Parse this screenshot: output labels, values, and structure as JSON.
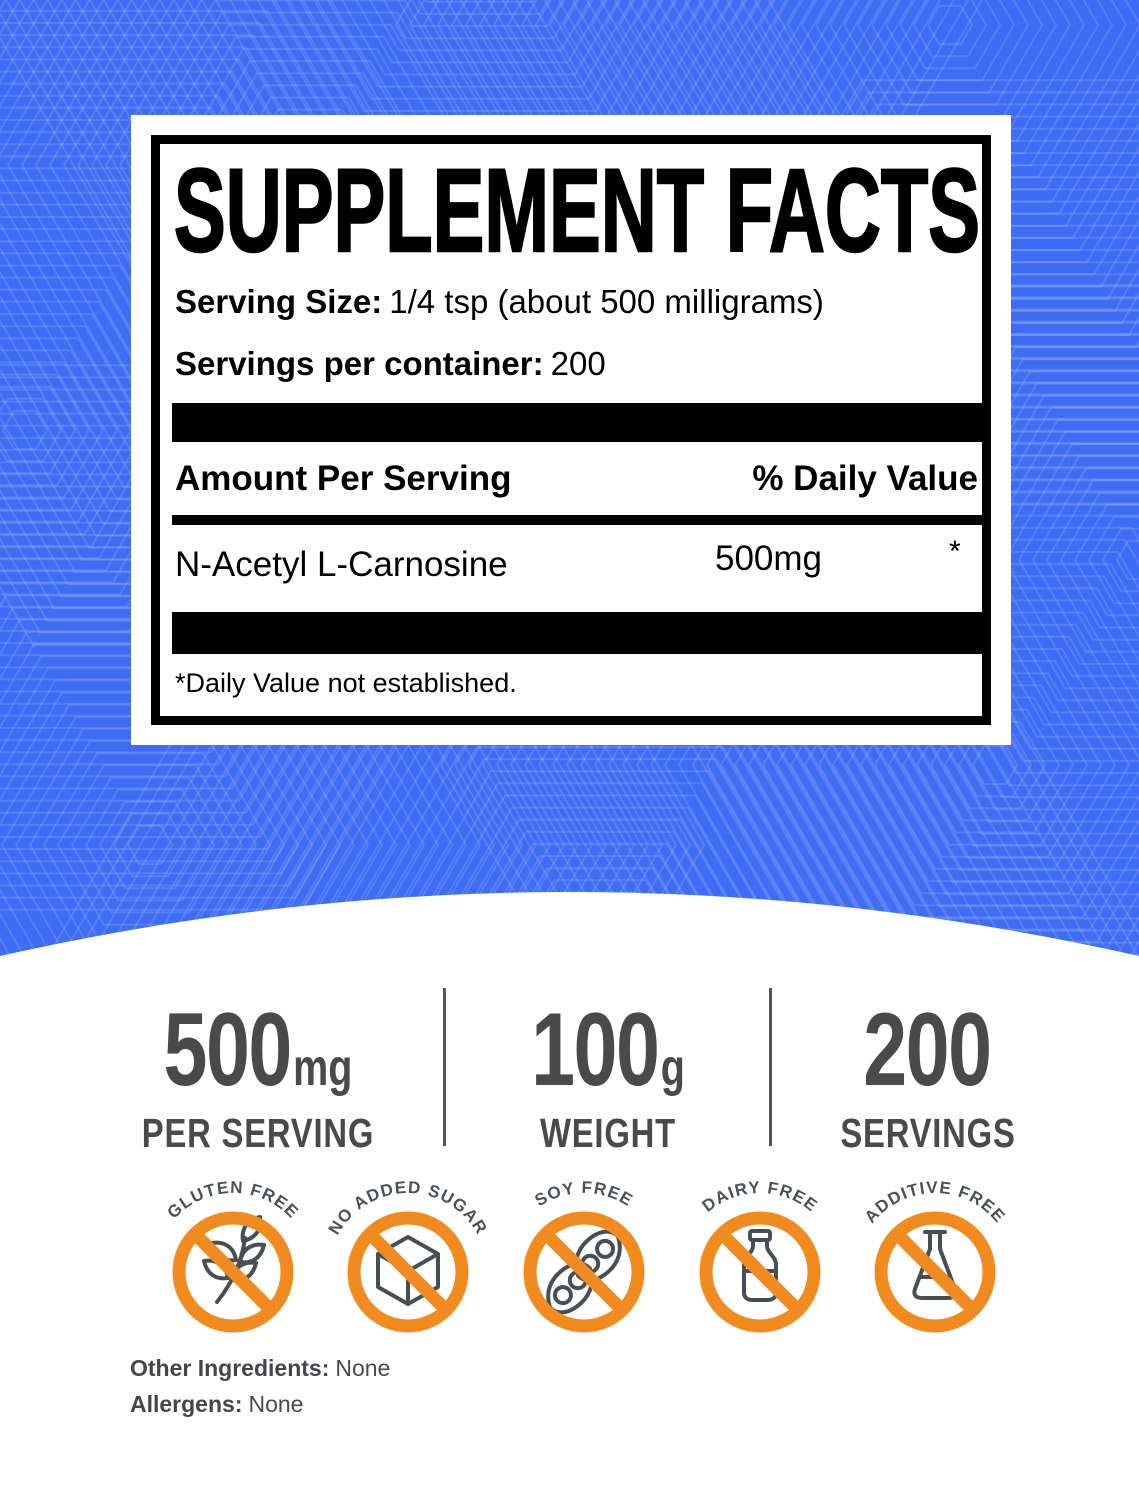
{
  "panel": {
    "title": "SUPPLEMENT FACTS",
    "serving_size_label": "Serving Size:",
    "serving_size_value": "1/4 tsp (about 500 milligrams)",
    "servings_label": "Servings per container:",
    "servings_value": "200",
    "col_amount": "Amount Per Serving",
    "col_dv": "% Daily Value",
    "ingredient": "N-Acetyl L-Carnosine",
    "amount": "500mg",
    "dv_mark": "*",
    "footnote": "*Daily Value not established."
  },
  "stats": [
    {
      "value": "500",
      "unit": "mg",
      "label": "PER SERVING"
    },
    {
      "value": "100",
      "unit": "g",
      "label": "WEIGHT"
    },
    {
      "value": "200",
      "unit": "",
      "label": "SERVINGS"
    }
  ],
  "badges": [
    {
      "label": "GLUTEN FREE",
      "icon": "wheat-icon"
    },
    {
      "label": "NO ADDED SUGAR",
      "icon": "sugar-cube-icon"
    },
    {
      "label": "SOY FREE",
      "icon": "soybean-icon"
    },
    {
      "label": "DAIRY FREE",
      "icon": "milk-bottle-icon"
    },
    {
      "label": "ADDITIVE FREE",
      "icon": "flask-icon"
    }
  ],
  "notes": {
    "other_ingredients_label": "Other Ingredients:",
    "other_ingredients_value": "None",
    "allergens_label": "Allergens:",
    "allergens_value": "None"
  },
  "colors": {
    "background_blue": "#3E6CF4",
    "accent_orange": "#F18A1F",
    "stat_gray": "#4A4A4C",
    "icon_gray": "#474F54"
  }
}
